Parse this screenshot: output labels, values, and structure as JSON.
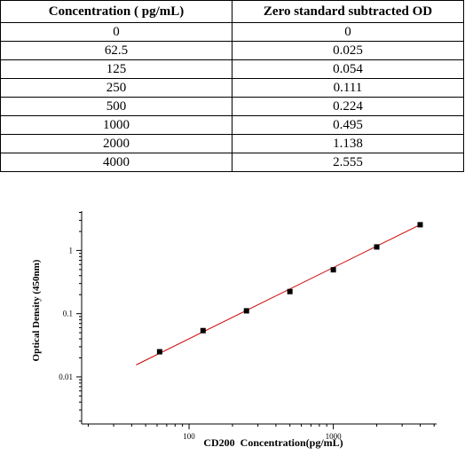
{
  "table": {
    "headers": [
      "Concentration ( pg/mL)",
      "Zero standard subtracted OD"
    ],
    "rows": [
      [
        "0",
        "0"
      ],
      [
        "62.5",
        "0.025"
      ],
      [
        "125",
        "0.054"
      ],
      [
        "250",
        "0.111"
      ],
      [
        "500",
        "0.224"
      ],
      [
        "1000",
        "0.495"
      ],
      [
        "2000",
        "1.138"
      ],
      [
        "4000",
        "2.555"
      ]
    ]
  },
  "chart_data": {
    "type": "scatter",
    "title": "",
    "xlabel": "CD200  Concentration(pg/mL)",
    "ylabel": "Optical Density (450nm)",
    "xscale": "log",
    "yscale": "log",
    "xlim": [
      18,
      5200
    ],
    "ylim": [
      0.0018,
      4.2
    ],
    "x_ticks": [
      100,
      1000
    ],
    "x_tick_labels": [
      "100",
      "1000"
    ],
    "y_ticks": [
      0.01,
      0.1,
      1
    ],
    "y_tick_labels": [
      "0.01",
      "0.1",
      "1"
    ],
    "grid": false,
    "points": {
      "x": [
        62.5,
        125,
        250,
        500,
        1000,
        2000,
        4000
      ],
      "y": [
        0.025,
        0.054,
        0.111,
        0.224,
        0.495,
        1.138,
        2.555
      ]
    },
    "fit_line": {
      "x": [
        43,
        4000
      ],
      "y": [
        0.0155,
        2.56
      ]
    },
    "colors": {
      "line": "#cc0000",
      "points": "#000000",
      "axes": "#000000"
    }
  }
}
